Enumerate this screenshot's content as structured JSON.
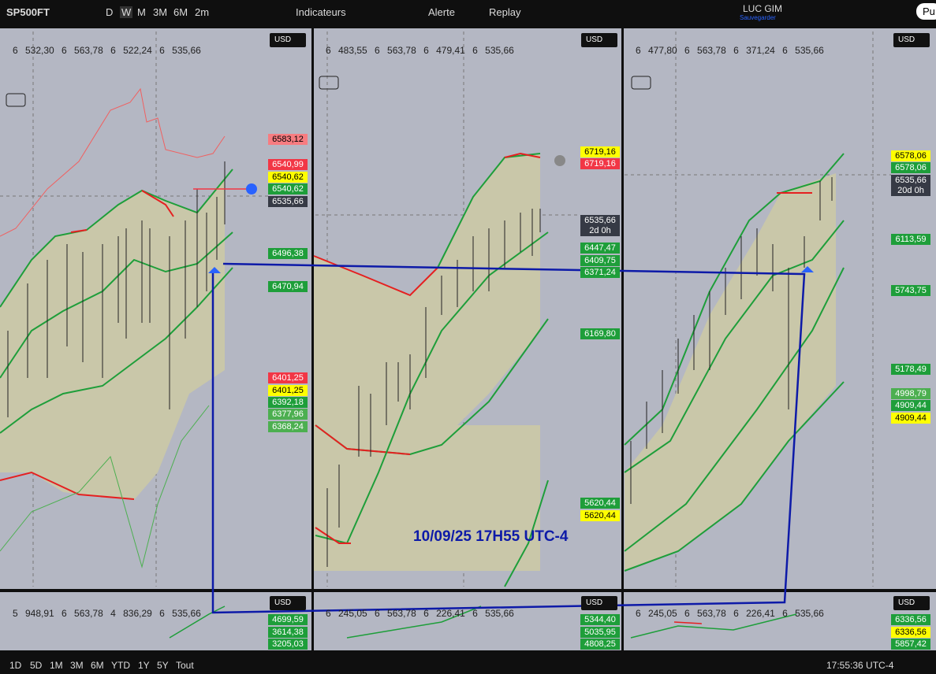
{
  "toolbar": {
    "symbol": "SP500FT",
    "intervals": [
      "D",
      "W",
      "M",
      "3M",
      "6M",
      "2m"
    ],
    "indicators": "Indicateurs",
    "alert": "Alerte",
    "replay": "Replay",
    "user": "LUC GIM",
    "save": "Sauvegarder",
    "publish": "Pu"
  },
  "panels": [
    {
      "currency": "USD",
      "ohlc": [
        "6 532,30",
        "6 563,78",
        "6 522,24",
        "6 535,66"
      ],
      "labels": [
        {
          "text": "6583,12",
          "color": "#f77c80"
        },
        {
          "text": "6540,99",
          "color": "#f23645"
        },
        {
          "text": "6540,62",
          "color": "#ffff00"
        },
        {
          "text": "6540,62",
          "color": "#1e9e3a"
        },
        {
          "text": "6535,66",
          "color": "#363a45"
        },
        {
          "text": "6496,38",
          "color": "#1e9e3a"
        },
        {
          "text": "6470,94",
          "color": "#1e9e3a"
        },
        {
          "text": "6401,25",
          "color": "#f23645"
        },
        {
          "text": "6401,25",
          "color": "#ffff00"
        },
        {
          "text": "6392,18",
          "color": "#1e9e3a"
        },
        {
          "text": "6377,96",
          "color": "#4caf50"
        },
        {
          "text": "6368,24",
          "color": "#4caf50"
        }
      ]
    },
    {
      "currency": "USD",
      "ohlc": [
        "6 483,55",
        "6 563,78",
        "6 479,41",
        "6 535,66"
      ],
      "labels": [
        {
          "text": "6719,16",
          "color": "#ffff00"
        },
        {
          "text": "6719,16",
          "color": "#f23645"
        },
        {
          "text": "6535,66",
          "color": "#363a45"
        },
        {
          "text": "2d 0h",
          "color": "#363a45"
        },
        {
          "text": "6447,47",
          "color": "#1e9e3a"
        },
        {
          "text": "6409,75",
          "color": "#1e9e3a"
        },
        {
          "text": "6371,24",
          "color": "#1e9e3a"
        },
        {
          "text": "6169,80",
          "color": "#1e9e3a"
        },
        {
          "text": "5620,44",
          "color": "#1e9e3a"
        },
        {
          "text": "5620,44",
          "color": "#ffff00"
        }
      ]
    },
    {
      "currency": "USD",
      "ohlc": [
        "6 477,80",
        "6 563,78",
        "6 371,24",
        "6 535,66"
      ],
      "labels": [
        {
          "text": "6578,06",
          "color": "#ffff00"
        },
        {
          "text": "6578,06",
          "color": "#1e9e3a"
        },
        {
          "text": "6535,66",
          "color": "#363a45"
        },
        {
          "text": "20d 0h",
          "color": "#363a45"
        },
        {
          "text": "6113,59",
          "color": "#1e9e3a"
        },
        {
          "text": "5743,75",
          "color": "#1e9e3a"
        },
        {
          "text": "5178,49",
          "color": "#1e9e3a"
        },
        {
          "text": "4998,79",
          "color": "#4caf50"
        },
        {
          "text": "4909,44",
          "color": "#1e9e3a"
        },
        {
          "text": "4909,44",
          "color": "#ffff00"
        }
      ]
    }
  ],
  "bottom_panels": [
    {
      "currency": "USD",
      "ohlc": [
        "5 948,91",
        "6 563,78",
        "4 836,29",
        "6 535,66"
      ],
      "labels": [
        {
          "text": "4699,59",
          "color": "#1e9e3a"
        },
        {
          "text": "3614,38",
          "color": "#1e9e3a"
        },
        {
          "text": "3205,03",
          "color": "#1e9e3a"
        }
      ]
    },
    {
      "currency": "USD",
      "ohlc": [
        "6 245,05",
        "6 563,78",
        "6 226,41",
        "6 535,66"
      ],
      "labels": [
        {
          "text": "5344,40",
          "color": "#1e9e3a"
        },
        {
          "text": "5035,95",
          "color": "#1e9e3a"
        },
        {
          "text": "4808,25",
          "color": "#1e9e3a"
        }
      ]
    },
    {
      "currency": "USD",
      "ohlc": [
        "6 245,05",
        "6 563,78",
        "6 226,41",
        "6 535,66"
      ],
      "labels": [
        {
          "text": "6336,56",
          "color": "#1e9e3a"
        },
        {
          "text": "6336,56",
          "color": "#ffff00"
        },
        {
          "text": "5857,42",
          "color": "#1e9e3a"
        }
      ]
    }
  ],
  "annotation": "10/09/25 17H55 UTC-4",
  "footer": {
    "ranges": [
      "1D",
      "5D",
      "1M",
      "3M",
      "6M",
      "YTD",
      "1Y",
      "5Y",
      "Tout"
    ],
    "clock": "17:55:36 UTC-4"
  }
}
